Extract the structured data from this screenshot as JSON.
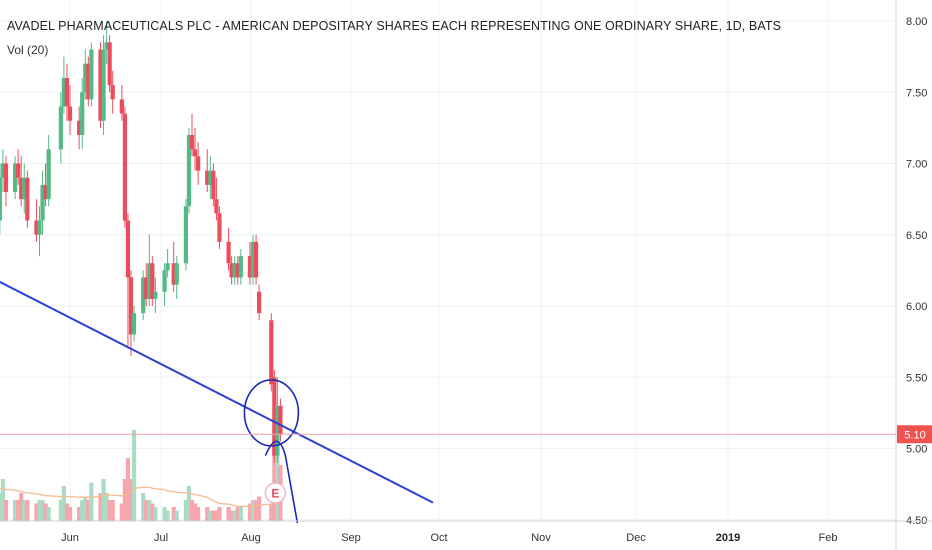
{
  "chart_data": {
    "type": "candlestick",
    "title": "AVADEL PHARMACEUTICALS PLC - AMERICAN DEPOSITARY SHARES EACH REPRESENTING ONE ORDINARY SHARE, 1D, BATS",
    "volume_indicator_label": "Vol (20)",
    "x_tick_labels": [
      "Jun",
      "Jul",
      "Aug",
      "Sep",
      "Oct",
      "Nov",
      "Dec",
      "2019",
      "Feb"
    ],
    "y_tick_labels": [
      "8.00",
      "7.50",
      "7.00",
      "6.50",
      "6.00",
      "5.50",
      "5.00",
      "4.50"
    ],
    "y_ticks": [
      8.0,
      7.5,
      7.0,
      6.5,
      6.0,
      5.5,
      5.0,
      4.5
    ],
    "ylim": [
      4.5,
      8.0
    ],
    "last_price": 5.1,
    "last_price_label": "5.10",
    "earnings_marker": "E",
    "trendline": {
      "start": [
        "May 8",
        6.18
      ],
      "end": [
        "Sep 28",
        4.62
      ]
    },
    "candles": [
      {
        "t": "May 08",
        "o": 6.55,
        "h": 6.8,
        "l": 6.45,
        "c": 6.6,
        "v": 0.7
      },
      {
        "t": "May 09",
        "o": 6.6,
        "h": 7.0,
        "l": 6.5,
        "c": 6.9,
        "v": 0.4
      },
      {
        "t": "May 10",
        "o": 6.9,
        "h": 7.1,
        "l": 6.8,
        "c": 7.0,
        "v": 0.6
      },
      {
        "t": "May 11",
        "o": 7.0,
        "h": 7.05,
        "l": 6.7,
        "c": 6.8,
        "v": 0.3
      },
      {
        "t": "May 14",
        "o": 6.8,
        "h": 7.05,
        "l": 6.75,
        "c": 7.0,
        "v": 0.3
      },
      {
        "t": "May 15",
        "o": 7.0,
        "h": 7.1,
        "l": 6.85,
        "c": 6.9,
        "v": 0.3
      },
      {
        "t": "May 16",
        "o": 6.9,
        "h": 7.05,
        "l": 6.7,
        "c": 6.75,
        "v": 0.4
      },
      {
        "t": "May 17",
        "o": 6.75,
        "h": 7.0,
        "l": 6.65,
        "c": 6.9,
        "v": 0.3
      },
      {
        "t": "May 18",
        "o": 6.9,
        "h": 6.95,
        "l": 6.55,
        "c": 6.6,
        "v": 0.3
      },
      {
        "t": "May 21",
        "o": 6.6,
        "h": 6.75,
        "l": 6.45,
        "c": 6.5,
        "v": 0.25
      },
      {
        "t": "May 22",
        "o": 6.5,
        "h": 6.7,
        "l": 6.35,
        "c": 6.6,
        "v": 0.3
      },
      {
        "t": "May 23",
        "o": 6.6,
        "h": 6.95,
        "l": 6.5,
        "c": 6.85,
        "v": 0.3
      },
      {
        "t": "May 24",
        "o": 6.85,
        "h": 7.0,
        "l": 6.7,
        "c": 6.75,
        "v": 0.25
      },
      {
        "t": "May 25",
        "o": 6.75,
        "h": 7.2,
        "l": 6.7,
        "c": 7.1,
        "v": 0.2
      },
      {
        "t": "May 29",
        "o": 7.1,
        "h": 7.5,
        "l": 7.0,
        "c": 7.4,
        "v": 0.3
      },
      {
        "t": "May 30",
        "o": 7.4,
        "h": 7.75,
        "l": 7.35,
        "c": 7.6,
        "v": 0.5
      },
      {
        "t": "May 31",
        "o": 7.6,
        "h": 7.7,
        "l": 7.3,
        "c": 7.4,
        "v": 0.25
      },
      {
        "t": "Jun 01",
        "o": 7.4,
        "h": 7.55,
        "l": 7.2,
        "c": 7.3,
        "v": 0.2
      },
      {
        "t": "Jun 04",
        "o": 7.3,
        "h": 7.4,
        "l": 7.1,
        "c": 7.2,
        "v": 0.2
      },
      {
        "t": "Jun 05",
        "o": 7.2,
        "h": 7.6,
        "l": 7.1,
        "c": 7.5,
        "v": 0.3
      },
      {
        "t": "Jun 06",
        "o": 7.5,
        "h": 7.8,
        "l": 7.45,
        "c": 7.7,
        "v": 0.35
      },
      {
        "t": "Jun 07",
        "o": 7.7,
        "h": 7.75,
        "l": 7.4,
        "c": 7.45,
        "v": 0.3
      },
      {
        "t": "Jun 08",
        "o": 7.45,
        "h": 7.85,
        "l": 7.4,
        "c": 7.8,
        "v": 0.55
      },
      {
        "t": "Jun 11",
        "o": 7.8,
        "h": 7.85,
        "l": 7.25,
        "c": 7.3,
        "v": 0.4
      },
      {
        "t": "Jun 12",
        "o": 7.3,
        "h": 7.9,
        "l": 7.2,
        "c": 7.8,
        "v": 0.6
      },
      {
        "t": "Jun 13",
        "o": 7.8,
        "h": 8.0,
        "l": 7.7,
        "c": 7.85,
        "v": 0.4
      },
      {
        "t": "Jun 14",
        "o": 7.85,
        "h": 7.9,
        "l": 7.5,
        "c": 7.55,
        "v": 0.3
      },
      {
        "t": "Jun 15",
        "o": 7.55,
        "h": 7.65,
        "l": 7.35,
        "c": 7.45,
        "v": 0.3
      },
      {
        "t": "Jun 18",
        "o": 7.45,
        "h": 7.55,
        "l": 7.3,
        "c": 7.35,
        "v": 0.25
      },
      {
        "t": "Jun 19",
        "o": 7.35,
        "h": 7.4,
        "l": 6.55,
        "c": 6.6,
        "v": 0.6
      },
      {
        "t": "Jun 20",
        "o": 6.6,
        "h": 6.65,
        "l": 5.7,
        "c": 6.2,
        "v": 0.9
      },
      {
        "t": "Jun 21",
        "o": 6.2,
        "h": 6.25,
        "l": 5.65,
        "c": 5.8,
        "v": 0.6
      },
      {
        "t": "Jun 22",
        "o": 5.8,
        "h": 6.0,
        "l": 5.75,
        "c": 5.95,
        "v": 1.3
      },
      {
        "t": "Jun 25",
        "o": 5.95,
        "h": 6.25,
        "l": 5.9,
        "c": 6.2,
        "v": 0.4
      },
      {
        "t": "Jun 26",
        "o": 6.2,
        "h": 6.3,
        "l": 6.0,
        "c": 6.05,
        "v": 0.3
      },
      {
        "t": "Jun 27",
        "o": 6.05,
        "h": 6.5,
        "l": 6.0,
        "c": 6.3,
        "v": 0.3
      },
      {
        "t": "Jun 28",
        "o": 6.3,
        "h": 6.35,
        "l": 6.0,
        "c": 6.05,
        "v": 0.25
      },
      {
        "t": "Jun 29",
        "o": 6.05,
        "h": 6.2,
        "l": 5.95,
        "c": 6.1,
        "v": 0.2
      },
      {
        "t": "Jul 02",
        "o": 6.1,
        "h": 6.3,
        "l": 6.0,
        "c": 6.25,
        "v": 0.2
      },
      {
        "t": "Jul 03",
        "o": 6.25,
        "h": 6.4,
        "l": 6.2,
        "c": 6.3,
        "v": 0.15
      },
      {
        "t": "Jul 05",
        "o": 6.3,
        "h": 6.45,
        "l": 6.1,
        "c": 6.15,
        "v": 0.2
      },
      {
        "t": "Jul 06",
        "o": 6.15,
        "h": 6.35,
        "l": 6.05,
        "c": 6.3,
        "v": 0.15
      },
      {
        "t": "Jul 09",
        "o": 6.3,
        "h": 6.75,
        "l": 6.25,
        "c": 6.7,
        "v": 0.3
      },
      {
        "t": "Jul 10",
        "o": 6.7,
        "h": 7.25,
        "l": 6.65,
        "c": 7.2,
        "v": 0.5
      },
      {
        "t": "Jul 11",
        "o": 7.2,
        "h": 7.35,
        "l": 7.05,
        "c": 7.1,
        "v": 0.3
      },
      {
        "t": "Jul 12",
        "o": 7.1,
        "h": 7.25,
        "l": 6.95,
        "c": 7.05,
        "v": 0.25
      },
      {
        "t": "Jul 13",
        "o": 7.05,
        "h": 7.15,
        "l": 6.85,
        "c": 6.95,
        "v": 0.2
      },
      {
        "t": "Jul 16",
        "o": 6.95,
        "h": 7.1,
        "l": 6.8,
        "c": 6.85,
        "v": 0.2
      },
      {
        "t": "Jul 17",
        "o": 6.85,
        "h": 7.05,
        "l": 6.75,
        "c": 6.95,
        "v": 0.15
      },
      {
        "t": "Jul 18",
        "o": 6.95,
        "h": 7.0,
        "l": 6.7,
        "c": 6.75,
        "v": 0.15
      },
      {
        "t": "Jul 19",
        "o": 6.75,
        "h": 6.9,
        "l": 6.6,
        "c": 6.65,
        "v": 0.15
      },
      {
        "t": "Jul 20",
        "o": 6.65,
        "h": 6.7,
        "l": 6.4,
        "c": 6.45,
        "v": 0.2
      },
      {
        "t": "Jul 23",
        "o": 6.45,
        "h": 6.55,
        "l": 6.25,
        "c": 6.3,
        "v": 0.2
      },
      {
        "t": "Jul 24",
        "o": 6.3,
        "h": 6.35,
        "l": 6.15,
        "c": 6.2,
        "v": 0.15
      },
      {
        "t": "Jul 25",
        "o": 6.2,
        "h": 6.35,
        "l": 6.15,
        "c": 6.3,
        "v": 0.15
      },
      {
        "t": "Jul 26",
        "o": 6.3,
        "h": 6.35,
        "l": 6.15,
        "c": 6.2,
        "v": 0.2
      },
      {
        "t": "Jul 27",
        "o": 6.2,
        "h": 6.4,
        "l": 6.15,
        "c": 6.35,
        "v": 0.2
      },
      {
        "t": "Jul 30",
        "o": 6.35,
        "h": 6.45,
        "l": 6.15,
        "c": 6.2,
        "v": 0.25
      },
      {
        "t": "Jul 31",
        "o": 6.2,
        "h": 6.5,
        "l": 6.15,
        "c": 6.45,
        "v": 0.3
      },
      {
        "t": "Aug 01",
        "o": 6.45,
        "h": 6.5,
        "l": 6.15,
        "c": 6.2,
        "v": 0.3
      },
      {
        "t": "Aug 02",
        "o": 6.1,
        "h": 6.15,
        "l": 5.9,
        "c": 5.95,
        "v": 0.35
      },
      {
        "t": "Aug 06",
        "o": 5.9,
        "h": 5.95,
        "l": 5.4,
        "c": 5.45,
        "v": 0.25
      },
      {
        "t": "Aug 07",
        "o": 5.5,
        "h": 5.55,
        "l": 4.9,
        "c": 4.95,
        "v": 1.2
      },
      {
        "t": "Aug 08",
        "o": 4.95,
        "h": 5.5,
        "l": 4.9,
        "c": 5.3,
        "v": 1.0
      },
      {
        "t": "Aug 09",
        "o": 5.3,
        "h": 5.35,
        "l": 5.05,
        "c": 5.1,
        "v": 0.8
      }
    ],
    "volume_ma": [
      0.48,
      0.47,
      0.46,
      0.45,
      0.44,
      0.43,
      0.42,
      0.41,
      0.4,
      0.39,
      0.38,
      0.37,
      0.36,
      0.36,
      0.35,
      0.35,
      0.35,
      0.35,
      0.34,
      0.34,
      0.34,
      0.34,
      0.34,
      0.35,
      0.36,
      0.37,
      0.37,
      0.37,
      0.36,
      0.37,
      0.4,
      0.42,
      0.47,
      0.48,
      0.48,
      0.48,
      0.47,
      0.46,
      0.45,
      0.43,
      0.42,
      0.41,
      0.4,
      0.4,
      0.39,
      0.38,
      0.37,
      0.34,
      0.31,
      0.29,
      0.27,
      0.25,
      0.24,
      0.23,
      0.22,
      0.21,
      0.21,
      0.21,
      0.22,
      0.22,
      0.23,
      0.24,
      0.29,
      0.33,
      0.36
    ],
    "colors": {
      "up": "#53b987",
      "down": "#eb4d5c",
      "up_vol": "#a9dcc3",
      "down_vol": "#f5a6ae",
      "trendline": "#2f3ed8",
      "annotation": "#1a2ab8",
      "ma": "#f7bb90",
      "price_line": "#f0a0a8",
      "price_label_bg": "#ef5350",
      "grid": "#eef0f3"
    }
  }
}
